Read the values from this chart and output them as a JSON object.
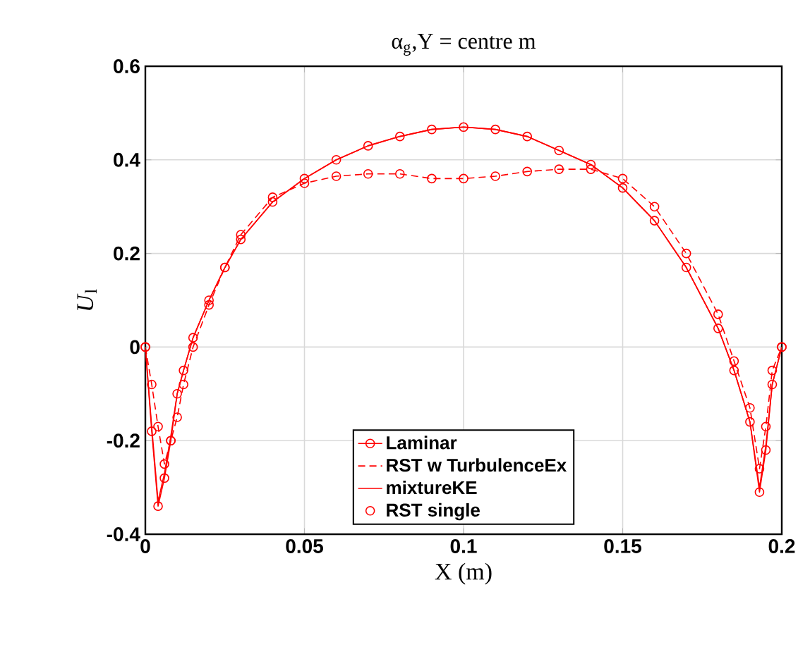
{
  "chart_data": {
    "type": "line",
    "title": "α$_{g}$,Y = centre m",
    "xlabel": "X (m)",
    "ylabel": "*U*$_{l}$",
    "x": [
      0,
      0.002,
      0.004,
      0.006,
      0.008,
      0.01,
      0.012,
      0.015,
      0.02,
      0.025,
      0.03,
      0.04,
      0.05,
      0.06,
      0.07,
      0.08,
      0.09,
      0.1,
      0.11,
      0.12,
      0.13,
      0.14,
      0.15,
      0.16,
      0.17,
      0.18,
      0.185,
      0.19,
      0.193,
      0.195,
      0.197,
      0.2
    ],
    "series": [
      {
        "name": "Laminar",
        "color": "#ff0000",
        "marker": "circle",
        "line_style": "solid",
        "values": [
          0,
          -0.18,
          -0.34,
          -0.28,
          -0.2,
          -0.1,
          -0.05,
          0.02,
          0.1,
          0.17,
          0.23,
          0.31,
          0.36,
          0.4,
          0.43,
          0.45,
          0.465,
          0.47,
          0.465,
          0.45,
          0.42,
          0.39,
          0.34,
          0.27,
          0.17,
          0.04,
          -0.05,
          -0.16,
          -0.31,
          -0.22,
          -0.08,
          0
        ]
      },
      {
        "name": "RST w TurbulenceEx",
        "color": "#ff0000",
        "marker": "none",
        "line_style": "dashed",
        "values": [
          0,
          -0.08,
          -0.17,
          -0.25,
          -0.2,
          -0.15,
          -0.08,
          0,
          0.09,
          0.17,
          0.24,
          0.32,
          0.35,
          0.365,
          0.37,
          0.37,
          0.36,
          0.36,
          0.365,
          0.375,
          0.38,
          0.38,
          0.36,
          0.3,
          0.2,
          0.07,
          -0.03,
          -0.13,
          -0.26,
          -0.17,
          -0.05,
          0
        ]
      },
      {
        "name": "mixtureKE",
        "color": "#ff0000",
        "marker": "none",
        "line_style": "solid",
        "values": [
          0,
          -0.17,
          -0.33,
          -0.27,
          -0.19,
          -0.1,
          -0.05,
          0.02,
          0.1,
          0.17,
          0.23,
          0.31,
          0.36,
          0.4,
          0.43,
          0.45,
          0.465,
          0.47,
          0.465,
          0.45,
          0.42,
          0.39,
          0.34,
          0.27,
          0.17,
          0.04,
          -0.05,
          -0.16,
          -0.3,
          -0.21,
          -0.08,
          0
        ]
      },
      {
        "name": "RST single",
        "type": "scatter",
        "color": "#ff0000",
        "marker": "circle",
        "values": [
          0,
          -0.08,
          -0.17,
          -0.25,
          -0.2,
          -0.15,
          -0.08,
          0,
          0.09,
          0.17,
          0.24,
          0.32,
          0.35,
          0.365,
          0.37,
          0.37,
          0.36,
          0.36,
          0.365,
          0.375,
          0.38,
          0.38,
          0.36,
          0.3,
          0.2,
          0.07,
          -0.03,
          -0.13,
          -0.26,
          -0.17,
          -0.05,
          0
        ]
      }
    ],
    "xlim": [
      0,
      0.2
    ],
    "xticks": [
      0,
      0.05,
      0.1,
      0.15,
      0.2
    ],
    "ylim": [
      -0.4,
      0.6
    ],
    "yticks": [
      -0.4,
      -0.2,
      0,
      0.2,
      0.4,
      0.6
    ],
    "grid": true,
    "legend": "bottom"
  }
}
